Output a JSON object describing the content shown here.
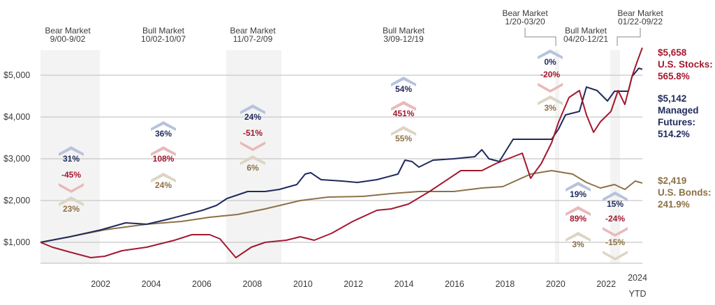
{
  "chart_data": {
    "type": "line",
    "title": "",
    "xlabel": "",
    "ylabel": "",
    "ylim": [
      500,
      5700
    ],
    "y_ticks": [
      {
        "value": 1000,
        "label": "$1,000"
      },
      {
        "value": 2000,
        "label": "$2,000"
      },
      {
        "value": 3000,
        "label": "$3,000"
      },
      {
        "value": 4000,
        "label": "$4,000"
      },
      {
        "value": 5000,
        "label": "$5,000"
      }
    ],
    "x_ticks": [
      {
        "value": 2002,
        "label": "2002"
      },
      {
        "value": 2004,
        "label": "2004"
      },
      {
        "value": 2006,
        "label": "2006"
      },
      {
        "value": 2008,
        "label": "2008"
      },
      {
        "value": 2010,
        "label": "2010"
      },
      {
        "value": 2012,
        "label": "2012"
      },
      {
        "value": 2014,
        "label": "2014"
      },
      {
        "value": 2016,
        "label": "2016"
      },
      {
        "value": 2018,
        "label": "2018"
      },
      {
        "value": 2020,
        "label": "2020"
      },
      {
        "value": 2022,
        "label": "2022"
      },
      {
        "value": 2024,
        "label": "2024",
        "sublabel": "YTD"
      }
    ],
    "grid": true,
    "colors": {
      "managed_futures": "#1f2a5c",
      "stocks": "#a3182f",
      "bonds": "#8c7146",
      "chev_managed": "#b7c3dc",
      "chev_stocks": "#e8b9b9",
      "chev_bonds": "#ddd5c4",
      "shade": "#f3f3f3"
    },
    "series": [
      {
        "key": "stocks",
        "end_value": "$5,658",
        "name": "U.S. Stocks:",
        "end_return": "565.8%",
        "points": [
          [
            2000.67,
            1000
          ],
          [
            2001.14,
            883
          ],
          [
            2001.83,
            767
          ],
          [
            2002.66,
            633
          ],
          [
            2003.21,
            667
          ],
          [
            2003.9,
            800
          ],
          [
            2004.87,
            883
          ],
          [
            2005.97,
            1050
          ],
          [
            2006.66,
            1183
          ],
          [
            2007.36,
            1183
          ],
          [
            2007.77,
            1083
          ],
          [
            2008.4,
            633
          ],
          [
            2009.01,
            883
          ],
          [
            2009.56,
            1000
          ],
          [
            2010.39,
            1050
          ],
          [
            2010.95,
            1133
          ],
          [
            2011.5,
            1050
          ],
          [
            2012.19,
            1217
          ],
          [
            2013.02,
            1500
          ],
          [
            2013.98,
            1767
          ],
          [
            2014.54,
            1800
          ],
          [
            2015.23,
            1917
          ],
          [
            2016.06,
            2217
          ],
          [
            2017.3,
            2717
          ],
          [
            2018.13,
            2717
          ],
          [
            2018.68,
            2883
          ],
          [
            2019.73,
            3133
          ],
          [
            2020.06,
            2533
          ],
          [
            2020.48,
            2883
          ],
          [
            2020.89,
            3383
          ],
          [
            2021.17,
            3883
          ],
          [
            2021.58,
            4467
          ],
          [
            2021.99,
            4633
          ],
          [
            2022.27,
            4050
          ],
          [
            2022.55,
            3633
          ],
          [
            2022.82,
            3883
          ],
          [
            2023.24,
            4133
          ],
          [
            2023.52,
            4633
          ],
          [
            2023.79,
            4300
          ],
          [
            2024.07,
            4967
          ],
          [
            2024.26,
            5300
          ],
          [
            2024.48,
            5658
          ]
        ]
      },
      {
        "key": "managed_futures",
        "end_value": "$5,142",
        "name": "Managed Futures:",
        "end_return": "514.2%",
        "points": [
          [
            2000.67,
            1000
          ],
          [
            2001.83,
            1133
          ],
          [
            2003.07,
            1300
          ],
          [
            2004.04,
            1467
          ],
          [
            2004.87,
            1433
          ],
          [
            2005.7,
            1550
          ],
          [
            2007.08,
            1767
          ],
          [
            2007.63,
            1883
          ],
          [
            2008.05,
            2050
          ],
          [
            2008.87,
            2217
          ],
          [
            2009.56,
            2217
          ],
          [
            2010.12,
            2267
          ],
          [
            2010.81,
            2383
          ],
          [
            2011.14,
            2633
          ],
          [
            2011.36,
            2667
          ],
          [
            2011.77,
            2500
          ],
          [
            2012.6,
            2467
          ],
          [
            2013.21,
            2433
          ],
          [
            2013.98,
            2500
          ],
          [
            2014.81,
            2633
          ],
          [
            2015.09,
            2967
          ],
          [
            2015.37,
            2933
          ],
          [
            2015.64,
            2800
          ],
          [
            2016.2,
            2967
          ],
          [
            2017.02,
            3000
          ],
          [
            2017.85,
            3050
          ],
          [
            2018.13,
            3217
          ],
          [
            2018.41,
            3000
          ],
          [
            2018.82,
            2933
          ],
          [
            2019.37,
            3467
          ],
          [
            2020.34,
            3467
          ],
          [
            2020.89,
            3467
          ],
          [
            2021.17,
            3717
          ],
          [
            2021.44,
            4050
          ],
          [
            2021.99,
            4133
          ],
          [
            2022.27,
            4717
          ],
          [
            2022.69,
            4633
          ],
          [
            2023.1,
            4383
          ],
          [
            2023.38,
            4617
          ],
          [
            2023.93,
            4617
          ],
          [
            2024.07,
            4967
          ],
          [
            2024.34,
            5167
          ],
          [
            2024.48,
            5142
          ]
        ]
      },
      {
        "key": "bonds",
        "end_value": "$2,419",
        "name": "U.S. Bonds:",
        "end_return": "241.9%",
        "points": [
          [
            2000.67,
            1000
          ],
          [
            2001.83,
            1133
          ],
          [
            2003.21,
            1300
          ],
          [
            2004.87,
            1433
          ],
          [
            2006.25,
            1500
          ],
          [
            2007.36,
            1600
          ],
          [
            2008.46,
            1667
          ],
          [
            2009.56,
            1800
          ],
          [
            2010.95,
            2000
          ],
          [
            2012.05,
            2083
          ],
          [
            2013.43,
            2100
          ],
          [
            2014.54,
            2167
          ],
          [
            2015.64,
            2217
          ],
          [
            2017.02,
            2217
          ],
          [
            2018.13,
            2300
          ],
          [
            2018.96,
            2333
          ],
          [
            2020.06,
            2633
          ],
          [
            2020.89,
            2717
          ],
          [
            2021.72,
            2633
          ],
          [
            2022.27,
            2433
          ],
          [
            2022.82,
            2300
          ],
          [
            2023.38,
            2383
          ],
          [
            2023.79,
            2267
          ],
          [
            2024.2,
            2467
          ],
          [
            2024.48,
            2419
          ]
        ]
      }
    ],
    "periods": [
      {
        "label": "Bear Market",
        "dates": "9/00-9/02",
        "shaded": true,
        "managed": "31%",
        "stocks": "-45%",
        "bonds": "23%"
      },
      {
        "label": "Bull Market",
        "dates": "10/02-10/07",
        "shaded": false,
        "managed": "36%",
        "stocks": "108%",
        "bonds": "24%"
      },
      {
        "label": "Bear Market",
        "dates": "11/07-2/09",
        "shaded": true,
        "managed": "24%",
        "stocks": "-51%",
        "bonds": "6%"
      },
      {
        "label": "Bull Market",
        "dates": "3/09-12/19",
        "shaded": false,
        "managed": "54%",
        "stocks": "451%",
        "bonds": "55%"
      },
      {
        "label": "Bear Market",
        "dates": "1/20-03/20",
        "shaded": true,
        "managed": "0%",
        "stocks": "-20%",
        "bonds": "3%"
      },
      {
        "label": "Bull Market",
        "dates": "04/20-12/21",
        "shaded": false,
        "managed": "19%",
        "stocks": "89%",
        "bonds": "3%"
      },
      {
        "label": "Bear Market",
        "dates": "01/22-09/22",
        "shaded": true,
        "managed": "15%",
        "stocks": "-24%",
        "bonds": "-15%"
      }
    ]
  }
}
